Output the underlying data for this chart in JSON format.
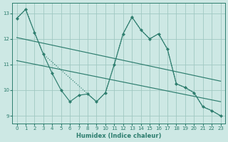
{
  "line_zigzag_x": [
    0,
    1,
    2,
    3,
    4,
    5,
    6,
    7,
    8,
    9,
    10,
    11,
    12,
    13,
    14,
    15,
    16,
    17,
    18,
    19,
    20,
    21,
    22,
    23
  ],
  "line_zigzag_y": [
    12.8,
    13.15,
    12.25,
    11.4,
    10.65,
    10.0,
    9.55,
    9.8,
    9.85,
    9.55,
    9.9,
    11.0,
    12.2,
    12.85,
    12.35,
    12.0,
    12.2,
    11.6,
    10.25,
    10.1,
    9.9,
    9.35,
    9.2,
    9.0
  ],
  "line_dotted_x": [
    0,
    1,
    2,
    3,
    9,
    10,
    11,
    12,
    13,
    14,
    15,
    16,
    17,
    18,
    19,
    20,
    21,
    22,
    23
  ],
  "line_dotted_y": [
    12.8,
    13.15,
    12.25,
    11.4,
    9.55,
    9.9,
    11.0,
    12.2,
    12.85,
    12.35,
    12.0,
    12.2,
    11.6,
    10.25,
    10.1,
    9.9,
    9.35,
    9.2,
    9.0
  ],
  "trend1_x": [
    0,
    23
  ],
  "trend1_y": [
    12.05,
    10.35
  ],
  "trend2_x": [
    0,
    23
  ],
  "trend2_y": [
    11.15,
    9.55
  ],
  "color": "#2d7d6e",
  "bg_color": "#cde8e4",
  "grid_color": "#a0c8c2",
  "xlabel": "Humidex (Indice chaleur)",
  "xlim": [
    -0.5,
    23.5
  ],
  "ylim": [
    8.7,
    13.4
  ],
  "yticks": [
    9,
    10,
    11,
    12,
    13
  ],
  "xticks": [
    0,
    1,
    2,
    3,
    4,
    5,
    6,
    7,
    8,
    9,
    10,
    11,
    12,
    13,
    14,
    15,
    16,
    17,
    18,
    19,
    20,
    21,
    22,
    23
  ]
}
